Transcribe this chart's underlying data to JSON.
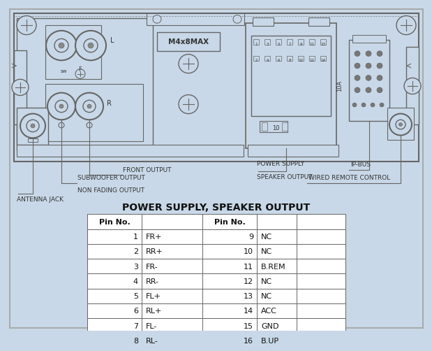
{
  "bg_color": "#c8d8e8",
  "title": "POWER SUPPLY, SPEAKER OUTPUT",
  "pin_data_left": [
    [
      1,
      "FR+"
    ],
    [
      2,
      "RR+"
    ],
    [
      3,
      "FR-"
    ],
    [
      4,
      "RR-"
    ],
    [
      5,
      "FL+"
    ],
    [
      6,
      "RL+"
    ],
    [
      7,
      "FL-"
    ],
    [
      8,
      "RL-"
    ]
  ],
  "pin_data_right": [
    [
      9,
      "NC"
    ],
    [
      10,
      "NC"
    ],
    [
      11,
      "B.REM"
    ],
    [
      12,
      "NC"
    ],
    [
      13,
      "NC"
    ],
    [
      14,
      "ACC"
    ],
    [
      15,
      "GND"
    ],
    [
      16,
      "B.UP"
    ]
  ],
  "line_color": "#666666",
  "text_color": "#333333",
  "white": "#ffffff",
  "table_row_color": "#f0f4f8"
}
